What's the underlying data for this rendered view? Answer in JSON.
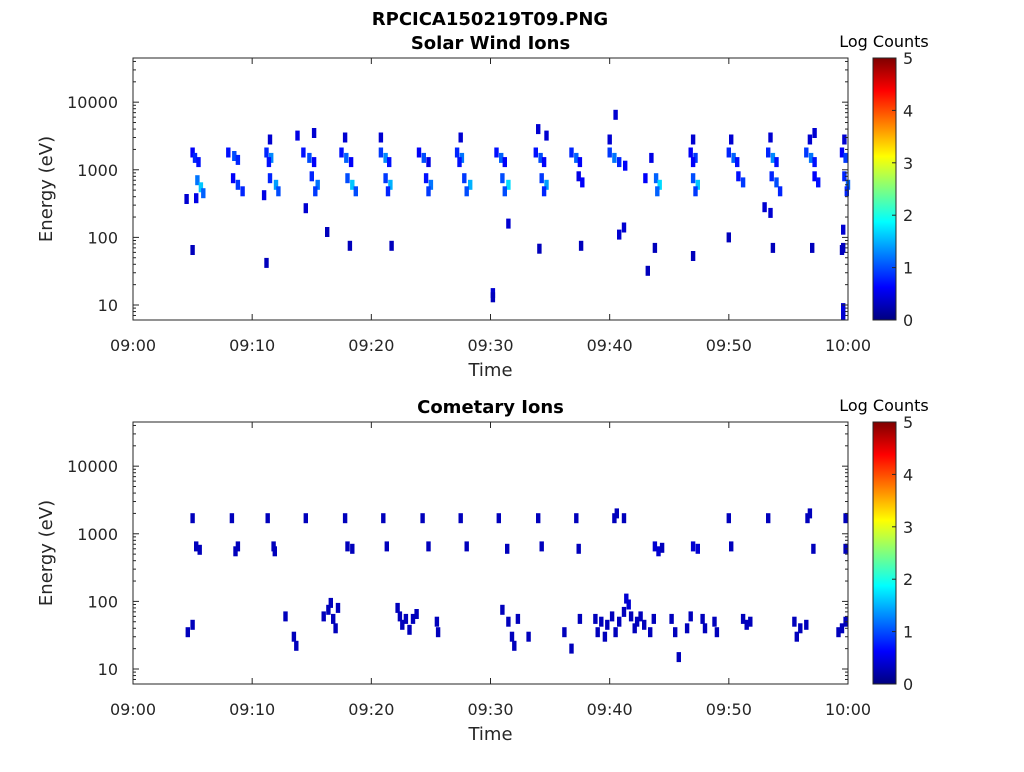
{
  "figure": {
    "title": "RPCICA150219T09.PNG"
  },
  "colormap": {
    "name": "jet",
    "stops": [
      "#00007f",
      "#0000ff",
      "#007fff",
      "#00ffff",
      "#7fff7f",
      "#ffff00",
      "#ff7f00",
      "#ff0000",
      "#7f0000"
    ]
  },
  "chart_data": [
    {
      "type": "heatmap",
      "title": "Solar Wind Ions",
      "xlabel": "Time",
      "ylabel": "Energy (eV)",
      "xlim": [
        "09:00",
        "10:00"
      ],
      "x_ticks": [
        "09:00",
        "09:10",
        "09:20",
        "09:30",
        "09:40",
        "09:50",
        "10:00"
      ],
      "y_scale": "log",
      "ylim": [
        6,
        45000
      ],
      "y_ticks": [
        "10",
        "100",
        "1000",
        "10000"
      ],
      "colorbar": {
        "label": "Log Counts",
        "range": [
          0,
          5
        ],
        "ticks": [
          "0",
          "1",
          "2",
          "3",
          "4",
          "5"
        ]
      },
      "cells": [
        [
          5.0,
          1800,
          0.6
        ],
        [
          5.2,
          1500,
          0.8
        ],
        [
          5.5,
          1300,
          0.7
        ],
        [
          5.4,
          700,
          1.2
        ],
        [
          5.7,
          550,
          1.6
        ],
        [
          5.9,
          450,
          1.1
        ],
        [
          5.3,
          380,
          0.5
        ],
        [
          8.0,
          1800,
          0.7
        ],
        [
          8.5,
          1600,
          1.0
        ],
        [
          8.8,
          1400,
          0.8
        ],
        [
          8.4,
          750,
          0.6
        ],
        [
          8.8,
          600,
          0.9
        ],
        [
          9.2,
          480,
          0.8
        ],
        [
          11.2,
          1800,
          0.8
        ],
        [
          11.6,
          1500,
          1.3
        ],
        [
          11.4,
          1300,
          0.7
        ],
        [
          11.5,
          750,
          0.8
        ],
        [
          12.0,
          600,
          1.4
        ],
        [
          12.2,
          480,
          1.0
        ],
        [
          11.0,
          420,
          0.5
        ],
        [
          14.3,
          1800,
          0.7
        ],
        [
          14.8,
          1500,
          1.0
        ],
        [
          15.2,
          1300,
          0.6
        ],
        [
          15.0,
          800,
          0.8
        ],
        [
          15.5,
          600,
          1.2
        ],
        [
          15.3,
          480,
          0.9
        ],
        [
          17.5,
          1800,
          0.7
        ],
        [
          17.9,
          1500,
          1.1
        ],
        [
          18.3,
          1300,
          0.6
        ],
        [
          18.0,
          750,
          1.0
        ],
        [
          18.4,
          600,
          1.6
        ],
        [
          18.7,
          480,
          1.0
        ],
        [
          20.8,
          1800,
          0.9
        ],
        [
          21.2,
          1500,
          1.3
        ],
        [
          21.5,
          1300,
          0.7
        ],
        [
          21.2,
          750,
          0.9
        ],
        [
          21.6,
          600,
          1.5
        ],
        [
          21.4,
          480,
          0.8
        ],
        [
          24.0,
          1800,
          0.6
        ],
        [
          24.4,
          1500,
          1.0
        ],
        [
          24.8,
          1300,
          0.5
        ],
        [
          24.6,
          750,
          0.7
        ],
        [
          25.0,
          600,
          1.2
        ],
        [
          24.8,
          480,
          0.9
        ],
        [
          27.2,
          1800,
          0.8
        ],
        [
          27.6,
          1500,
          1.2
        ],
        [
          27.4,
          1300,
          0.7
        ],
        [
          27.8,
          750,
          0.9
        ],
        [
          28.3,
          600,
          1.5
        ],
        [
          28.0,
          480,
          1.0
        ],
        [
          30.5,
          1800,
          0.7
        ],
        [
          30.9,
          1500,
          1.1
        ],
        [
          31.2,
          1300,
          0.6
        ],
        [
          31.0,
          750,
          1.0
        ],
        [
          31.5,
          600,
          1.7
        ],
        [
          31.2,
          480,
          1.0
        ],
        [
          33.8,
          1800,
          0.7
        ],
        [
          34.2,
          1500,
          1.0
        ],
        [
          34.5,
          1300,
          0.6
        ],
        [
          34.3,
          750,
          0.9
        ],
        [
          34.7,
          600,
          1.4
        ],
        [
          34.5,
          480,
          0.8
        ],
        [
          36.8,
          1800,
          0.8
        ],
        [
          37.2,
          1500,
          1.1
        ],
        [
          37.5,
          1300,
          0.6
        ],
        [
          37.4,
          800,
          0.5
        ],
        [
          37.7,
          650,
          0.6
        ],
        [
          40.0,
          1800,
          0.9
        ],
        [
          40.4,
          1500,
          1.2
        ],
        [
          40.8,
          1300,
          0.8
        ],
        [
          41.3,
          1150,
          0.6
        ],
        [
          43.5,
          1500,
          0.5
        ],
        [
          43.0,
          750,
          0.6
        ],
        [
          43.9,
          750,
          1.1
        ],
        [
          44.2,
          600,
          1.7
        ],
        [
          44.0,
          480,
          1.1
        ],
        [
          46.8,
          1800,
          0.6
        ],
        [
          47.2,
          1500,
          0.9
        ],
        [
          47.0,
          1300,
          0.6
        ],
        [
          47.0,
          750,
          1.0
        ],
        [
          47.4,
          600,
          1.6
        ],
        [
          47.2,
          480,
          0.9
        ],
        [
          50.0,
          1800,
          0.8
        ],
        [
          50.4,
          1500,
          1.1
        ],
        [
          50.7,
          1300,
          0.7
        ],
        [
          50.8,
          800,
          0.7
        ],
        [
          51.2,
          650,
          0.9
        ],
        [
          53.3,
          1800,
          0.8
        ],
        [
          53.7,
          1500,
          1.3
        ],
        [
          54.0,
          1300,
          0.7
        ],
        [
          53.6,
          800,
          0.8
        ],
        [
          54.0,
          650,
          1.0
        ],
        [
          54.3,
          480,
          0.8
        ],
        [
          56.5,
          1800,
          0.9
        ],
        [
          56.9,
          1500,
          1.2
        ],
        [
          57.2,
          1300,
          0.7
        ],
        [
          57.2,
          800,
          0.6
        ],
        [
          57.5,
          650,
          0.7
        ],
        [
          59.5,
          1800,
          0.6
        ],
        [
          59.8,
          1500,
          0.9
        ],
        [
          59.7,
          800,
          0.8
        ],
        [
          60.0,
          600,
          1.1
        ],
        [
          59.9,
          480,
          0.8
        ],
        [
          11.5,
          2800,
          0.4
        ],
        [
          13.8,
          3200,
          0.5
        ],
        [
          15.2,
          3500,
          0.4
        ],
        [
          17.8,
          3000,
          0.4
        ],
        [
          20.8,
          3000,
          0.4
        ],
        [
          27.5,
          3000,
          0.4
        ],
        [
          34.0,
          4000,
          0.4
        ],
        [
          34.7,
          3200,
          0.4
        ],
        [
          40.0,
          2800,
          0.4
        ],
        [
          40.5,
          6500,
          0.4
        ],
        [
          47.0,
          2800,
          0.4
        ],
        [
          50.2,
          2800,
          0.4
        ],
        [
          53.5,
          3000,
          0.4
        ],
        [
          56.8,
          2800,
          0.4
        ],
        [
          57.2,
          3500,
          0.4
        ],
        [
          59.7,
          2800,
          0.4
        ],
        [
          4.5,
          370,
          0.4
        ],
        [
          14.5,
          270,
          0.4
        ],
        [
          31.5,
          160,
          0.4
        ],
        [
          41.2,
          140,
          0.4
        ],
        [
          40.8,
          110,
          0.4
        ],
        [
          53.0,
          280,
          0.4
        ],
        [
          53.5,
          230,
          0.4
        ],
        [
          59.6,
          130,
          0.4
        ],
        [
          5.0,
          65,
          0.3
        ],
        [
          16.3,
          120,
          0.3
        ],
        [
          18.2,
          75,
          0.3
        ],
        [
          21.7,
          75,
          0.3
        ],
        [
          34.1,
          68,
          0.3
        ],
        [
          37.6,
          75,
          0.3
        ],
        [
          43.8,
          70,
          0.3
        ],
        [
          47.0,
          53,
          0.3
        ],
        [
          50.0,
          100,
          0.3
        ],
        [
          53.7,
          70,
          0.3
        ],
        [
          57.0,
          70,
          0.3
        ],
        [
          59.5,
          65,
          0.3
        ],
        [
          11.2,
          42,
          0.3
        ],
        [
          43.2,
          32,
          0.3
        ],
        [
          30.2,
          15,
          0.4
        ],
        [
          30.2,
          13,
          0.3
        ],
        [
          59.6,
          9,
          0.4
        ],
        [
          59.6,
          8,
          0.5
        ],
        [
          59.6,
          7,
          0.4
        ],
        [
          59.6,
          70,
          0.3
        ]
      ]
    },
    {
      "type": "heatmap",
      "title": "Cometary Ions",
      "xlabel": "Time",
      "ylabel": "Energy (eV)",
      "xlim": [
        "09:00",
        "10:00"
      ],
      "x_ticks": [
        "09:00",
        "09:10",
        "09:20",
        "09:30",
        "09:40",
        "09:50",
        "10:00"
      ],
      "y_scale": "log",
      "ylim": [
        6,
        45000
      ],
      "y_ticks": [
        "10",
        "100",
        "1000",
        "10000"
      ],
      "colorbar": {
        "label": "Log Counts",
        "range": [
          0,
          5
        ],
        "ticks": [
          "0",
          "1",
          "2",
          "3",
          "4",
          "5"
        ]
      },
      "cells": [
        [
          5.0,
          1700,
          0.3
        ],
        [
          8.3,
          1700,
          0.3
        ],
        [
          11.3,
          1700,
          0.3
        ],
        [
          14.5,
          1700,
          0.3
        ],
        [
          17.8,
          1700,
          0.3
        ],
        [
          21.0,
          1700,
          0.3
        ],
        [
          24.3,
          1700,
          0.3
        ],
        [
          27.5,
          1700,
          0.3
        ],
        [
          30.7,
          1700,
          0.3
        ],
        [
          34.0,
          1700,
          0.3
        ],
        [
          37.2,
          1700,
          0.3
        ],
        [
          40.4,
          1700,
          0.3
        ],
        [
          40.6,
          2000,
          0.3
        ],
        [
          41.2,
          1700,
          0.3
        ],
        [
          50.0,
          1700,
          0.3
        ],
        [
          53.3,
          1700,
          0.3
        ],
        [
          56.6,
          1700,
          0.3
        ],
        [
          56.8,
          2000,
          0.3
        ],
        [
          59.8,
          1700,
          0.3
        ],
        [
          5.3,
          650,
          0.3
        ],
        [
          5.6,
          580,
          0.3
        ],
        [
          8.8,
          650,
          0.3
        ],
        [
          8.6,
          550,
          0.3
        ],
        [
          11.8,
          650,
          0.3
        ],
        [
          11.9,
          550,
          0.3
        ],
        [
          18.0,
          650,
          0.3
        ],
        [
          18.4,
          600,
          0.3
        ],
        [
          21.3,
          650,
          0.3
        ],
        [
          24.8,
          650,
          0.3
        ],
        [
          28.0,
          650,
          0.3
        ],
        [
          31.4,
          600,
          0.3
        ],
        [
          34.3,
          650,
          0.3
        ],
        [
          37.4,
          600,
          0.3
        ],
        [
          43.8,
          650,
          0.4
        ],
        [
          44.1,
          550,
          0.4
        ],
        [
          44.4,
          620,
          0.3
        ],
        [
          47.0,
          650,
          0.4
        ],
        [
          47.4,
          600,
          0.4
        ],
        [
          50.2,
          650,
          0.3
        ],
        [
          57.1,
          600,
          0.3
        ],
        [
          59.8,
          600,
          0.3
        ],
        [
          4.6,
          35,
          0.3
        ],
        [
          5.0,
          45,
          0.3
        ],
        [
          12.8,
          60,
          0.3
        ],
        [
          13.5,
          30,
          0.3
        ],
        [
          13.7,
          22,
          0.3
        ],
        [
          16.0,
          60,
          0.3
        ],
        [
          16.4,
          75,
          0.3
        ],
        [
          16.6,
          95,
          0.3
        ],
        [
          16.8,
          55,
          0.3
        ],
        [
          17.0,
          40,
          0.3
        ],
        [
          17.2,
          80,
          0.3
        ],
        [
          22.2,
          80,
          0.3
        ],
        [
          22.4,
          60,
          0.3
        ],
        [
          22.6,
          45,
          0.3
        ],
        [
          22.9,
          55,
          0.3
        ],
        [
          23.2,
          38,
          0.3
        ],
        [
          23.5,
          55,
          0.3
        ],
        [
          23.8,
          65,
          0.3
        ],
        [
          25.5,
          50,
          0.3
        ],
        [
          25.6,
          35,
          0.3
        ],
        [
          31.0,
          75,
          0.3
        ],
        [
          31.5,
          50,
          0.3
        ],
        [
          31.8,
          30,
          0.3
        ],
        [
          32.0,
          22,
          0.3
        ],
        [
          32.3,
          55,
          0.3
        ],
        [
          33.2,
          30,
          0.3
        ],
        [
          36.2,
          35,
          0.3
        ],
        [
          36.8,
          20,
          0.3
        ],
        [
          37.5,
          55,
          0.3
        ],
        [
          38.8,
          55,
          0.3
        ],
        [
          39.0,
          35,
          0.3
        ],
        [
          39.3,
          50,
          0.3
        ],
        [
          39.6,
          30,
          0.3
        ],
        [
          39.8,
          45,
          0.3
        ],
        [
          40.2,
          60,
          0.3
        ],
        [
          40.5,
          35,
          0.3
        ],
        [
          40.8,
          50,
          0.3
        ],
        [
          41.2,
          70,
          0.3
        ],
        [
          41.4,
          110,
          0.4
        ],
        [
          41.6,
          90,
          0.4
        ],
        [
          41.8,
          60,
          0.3
        ],
        [
          42.1,
          40,
          0.3
        ],
        [
          42.3,
          50,
          0.3
        ],
        [
          42.6,
          60,
          0.3
        ],
        [
          42.9,
          45,
          0.3
        ],
        [
          43.4,
          35,
          0.3
        ],
        [
          43.7,
          55,
          0.3
        ],
        [
          45.2,
          55,
          0.3
        ],
        [
          45.5,
          35,
          0.3
        ],
        [
          45.8,
          15,
          0.3
        ],
        [
          46.5,
          40,
          0.3
        ],
        [
          46.8,
          60,
          0.3
        ],
        [
          47.8,
          55,
          0.3
        ],
        [
          48.0,
          40,
          0.3
        ],
        [
          48.8,
          50,
          0.3
        ],
        [
          49.0,
          35,
          0.3
        ],
        [
          51.2,
          55,
          0.3
        ],
        [
          51.5,
          45,
          0.3
        ],
        [
          51.8,
          50,
          0.3
        ],
        [
          55.5,
          50,
          0.3
        ],
        [
          55.7,
          30,
          0.3
        ],
        [
          56.0,
          40,
          0.3
        ],
        [
          56.5,
          45,
          0.3
        ],
        [
          59.2,
          35,
          0.3
        ],
        [
          59.5,
          40,
          0.3
        ],
        [
          59.8,
          50,
          0.3
        ]
      ]
    }
  ]
}
